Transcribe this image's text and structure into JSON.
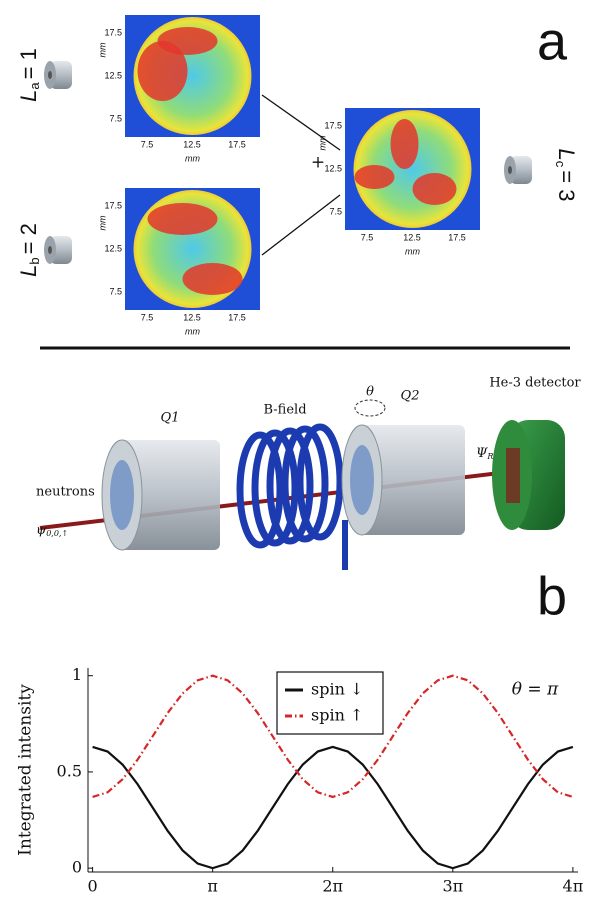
{
  "panel_a": {
    "label": "a",
    "plus": "+",
    "modes": [
      {
        "symbol": "L",
        "subscript": "a",
        "value": "= 1"
      },
      {
        "symbol": "L",
        "subscript": "b",
        "value": "= 2"
      },
      {
        "symbol": "L",
        "subscript": "c",
        "value": "= 3"
      }
    ],
    "maps": [
      {
        "yticks": [
          "17.5",
          "12.5",
          "7.5"
        ],
        "xticks": [
          "7.5",
          "12.5",
          "17.5"
        ],
        "xlabel": "mm",
        "ylabel": "mm"
      },
      {
        "yticks": [
          "17.5",
          "12.5",
          "7.5"
        ],
        "xticks": [
          "7.5",
          "12.5",
          "17.5"
        ],
        "xlabel": "mm",
        "ylabel": "mm"
      },
      {
        "yticks": [
          "17.5",
          "12.5",
          "7.5"
        ],
        "xticks": [
          "7.5",
          "12.5",
          "17.5"
        ],
        "xlabel": "mm",
        "ylabel": "mm"
      }
    ]
  },
  "panel_b": {
    "label": "b",
    "q1": "Q1",
    "bfield": "B-field",
    "theta": "θ",
    "q2": "Q2",
    "detector": "He-3 detector",
    "neutrons": "neutrons",
    "psi_in": {
      "symbol": "ψ",
      "subscript": "0,0,↑"
    },
    "psi_out": {
      "symbol": "Ψ",
      "subscript": "R"
    }
  },
  "chart_data": {
    "type": "line",
    "ylabel": "Integrated intensity",
    "annotation": "θ = π",
    "x": [
      0,
      0.3927,
      0.7854,
      1.1781,
      1.5708,
      1.9635,
      2.3562,
      2.7489,
      3.1416,
      3.5343,
      3.927,
      4.3197,
      4.7124,
      5.1051,
      5.4978,
      5.8905,
      6.2832,
      6.6759,
      7.0686,
      7.4613,
      7.854,
      8.2467,
      8.6394,
      9.0321,
      9.4248,
      9.8175,
      10.2102,
      10.6029,
      10.9956,
      11.3883,
      11.781,
      12.1737,
      12.5664
    ],
    "series": [
      {
        "name": "spin ↓",
        "color": "#111111",
        "dash": "solid",
        "values": [
          0.63,
          0.606,
          0.538,
          0.436,
          0.315,
          0.194,
          0.092,
          0.024,
          0,
          0.024,
          0.092,
          0.194,
          0.315,
          0.436,
          0.538,
          0.606,
          0.63,
          0.606,
          0.538,
          0.436,
          0.315,
          0.194,
          0.092,
          0.024,
          0,
          0.024,
          0.092,
          0.194,
          0.315,
          0.436,
          0.538,
          0.606,
          0.63
        ]
      },
      {
        "name": "spin ↑",
        "color": "#d62728",
        "dash": "dashdot",
        "values": [
          0.37,
          0.394,
          0.462,
          0.564,
          0.685,
          0.806,
          0.908,
          0.976,
          1,
          0.976,
          0.908,
          0.806,
          0.685,
          0.564,
          0.462,
          0.394,
          0.37,
          0.394,
          0.462,
          0.564,
          0.685,
          0.806,
          0.908,
          0.976,
          1,
          0.976,
          0.908,
          0.806,
          0.685,
          0.564,
          0.462,
          0.394,
          0.37
        ]
      }
    ],
    "xlim": [
      -0.12,
      12.7
    ],
    "ylim": [
      -0.02,
      1.04
    ],
    "xticks": [
      {
        "value": 0,
        "label": "0"
      },
      {
        "value": 3.1416,
        "label": "π"
      },
      {
        "value": 6.2832,
        "label": "2π"
      },
      {
        "value": 9.4248,
        "label": "3π"
      },
      {
        "value": 12.5664,
        "label": "4π"
      }
    ],
    "yticks": [
      0,
      0.5,
      1
    ]
  }
}
